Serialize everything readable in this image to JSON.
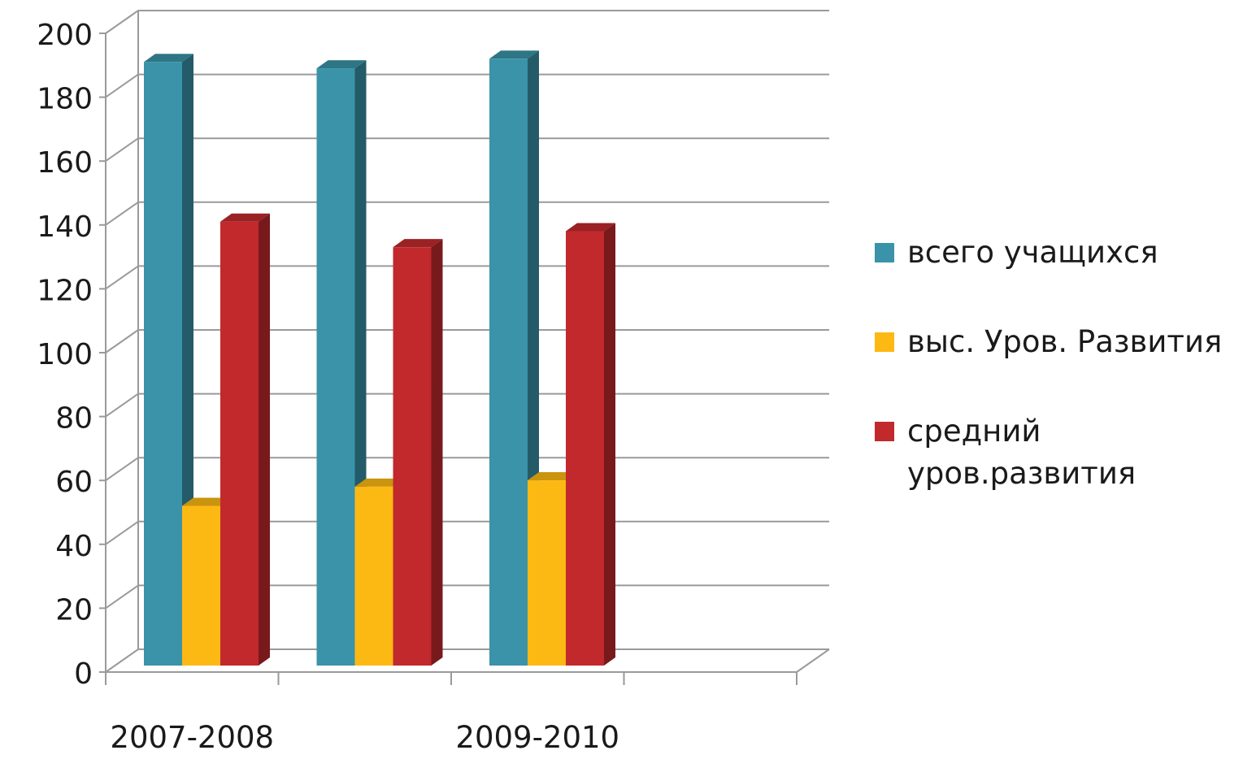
{
  "chart_data": {
    "type": "bar",
    "categories": [
      "2007-2008",
      "",
      "2009-2010"
    ],
    "series": [
      {
        "name": "всего учащихся",
        "values": [
          189,
          187,
          190
        ],
        "color": "#3A93A8"
      },
      {
        "name": "выс. Уров. Развития",
        "values": [
          50,
          56,
          58
        ],
        "color": "#FDB913"
      },
      {
        "name": "средний уров.развития",
        "values": [
          139,
          131,
          136
        ],
        "color": "#C1292D"
      }
    ],
    "y_ticks": [
      "0",
      "20",
      "40",
      "60",
      "80",
      "100",
      "120",
      "140",
      "160",
      "180",
      "200"
    ],
    "ylim": [
      0,
      200
    ],
    "grid": true,
    "style": "3d-clustered-column",
    "legend_position": "right"
  }
}
